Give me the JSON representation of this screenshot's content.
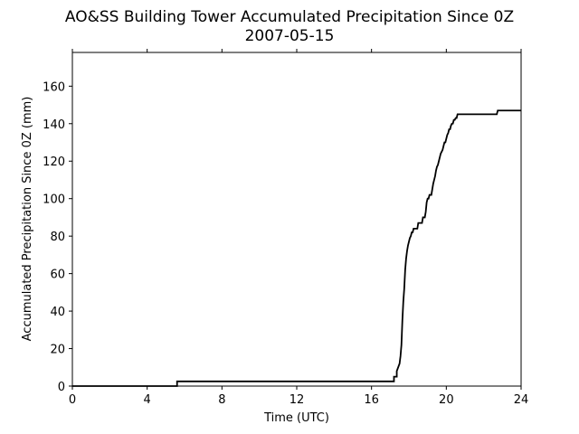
{
  "chart_data": {
    "type": "line",
    "title": "AO&SS Building Tower Accumulated Precipitation Since 0Z",
    "subtitle": "2007-05-15",
    "xlabel": "Time (UTC)",
    "ylabel": "Accumulated Precipitation Since 0Z (mm)",
    "xlim": [
      0,
      24
    ],
    "ylim": [
      0,
      178
    ],
    "xticks": [
      0,
      4,
      8,
      12,
      16,
      20,
      24
    ],
    "yticks": [
      0,
      20,
      40,
      60,
      80,
      100,
      120,
      140,
      160
    ],
    "grid": false,
    "line_color": "#000000",
    "series": [
      {
        "x": [
          0,
          5.6,
          5.6,
          17.2,
          17.2,
          17.35,
          17.35,
          17.5,
          17.55,
          17.6,
          17.65,
          17.7,
          17.75,
          17.8,
          17.85,
          17.9,
          17.95,
          18.0,
          18.05,
          18.1,
          18.15,
          18.2,
          18.25,
          18.3,
          18.35,
          18.45,
          18.5,
          18.55,
          18.7,
          18.75,
          18.85,
          18.9,
          18.95,
          19.0,
          19.05,
          19.1,
          19.2,
          19.25,
          19.3,
          19.35,
          19.4,
          19.45,
          19.5,
          19.55,
          19.6,
          19.65,
          19.7,
          19.8,
          19.85,
          19.9,
          19.95,
          20.0,
          20.05,
          20.1,
          20.15,
          20.2,
          20.25,
          20.3,
          20.35,
          20.4,
          20.45,
          20.5,
          20.55,
          20.6,
          20.65,
          20.7,
          20.75,
          20.8,
          20.85,
          21.1,
          21.15,
          22.7,
          22.75,
          24.0
        ],
        "y": [
          0,
          0,
          2.5,
          2.5,
          5,
          5,
          8,
          12,
          16,
          22,
          35,
          45,
          52,
          62,
          68,
          72,
          75,
          77,
          79,
          80,
          82,
          82,
          84,
          84,
          84,
          84,
          87,
          87,
          87,
          90,
          90,
          93,
          98,
          100,
          100,
          102,
          102,
          105,
          108,
          110,
          112,
          115,
          117,
          118,
          120,
          122,
          124,
          126,
          128,
          130,
          130,
          132,
          134,
          135,
          137,
          137,
          139,
          140,
          140,
          142,
          142,
          143,
          143,
          145,
          145,
          145,
          145,
          145,
          145,
          145,
          145,
          145,
          147,
          147
        ]
      }
    ]
  }
}
